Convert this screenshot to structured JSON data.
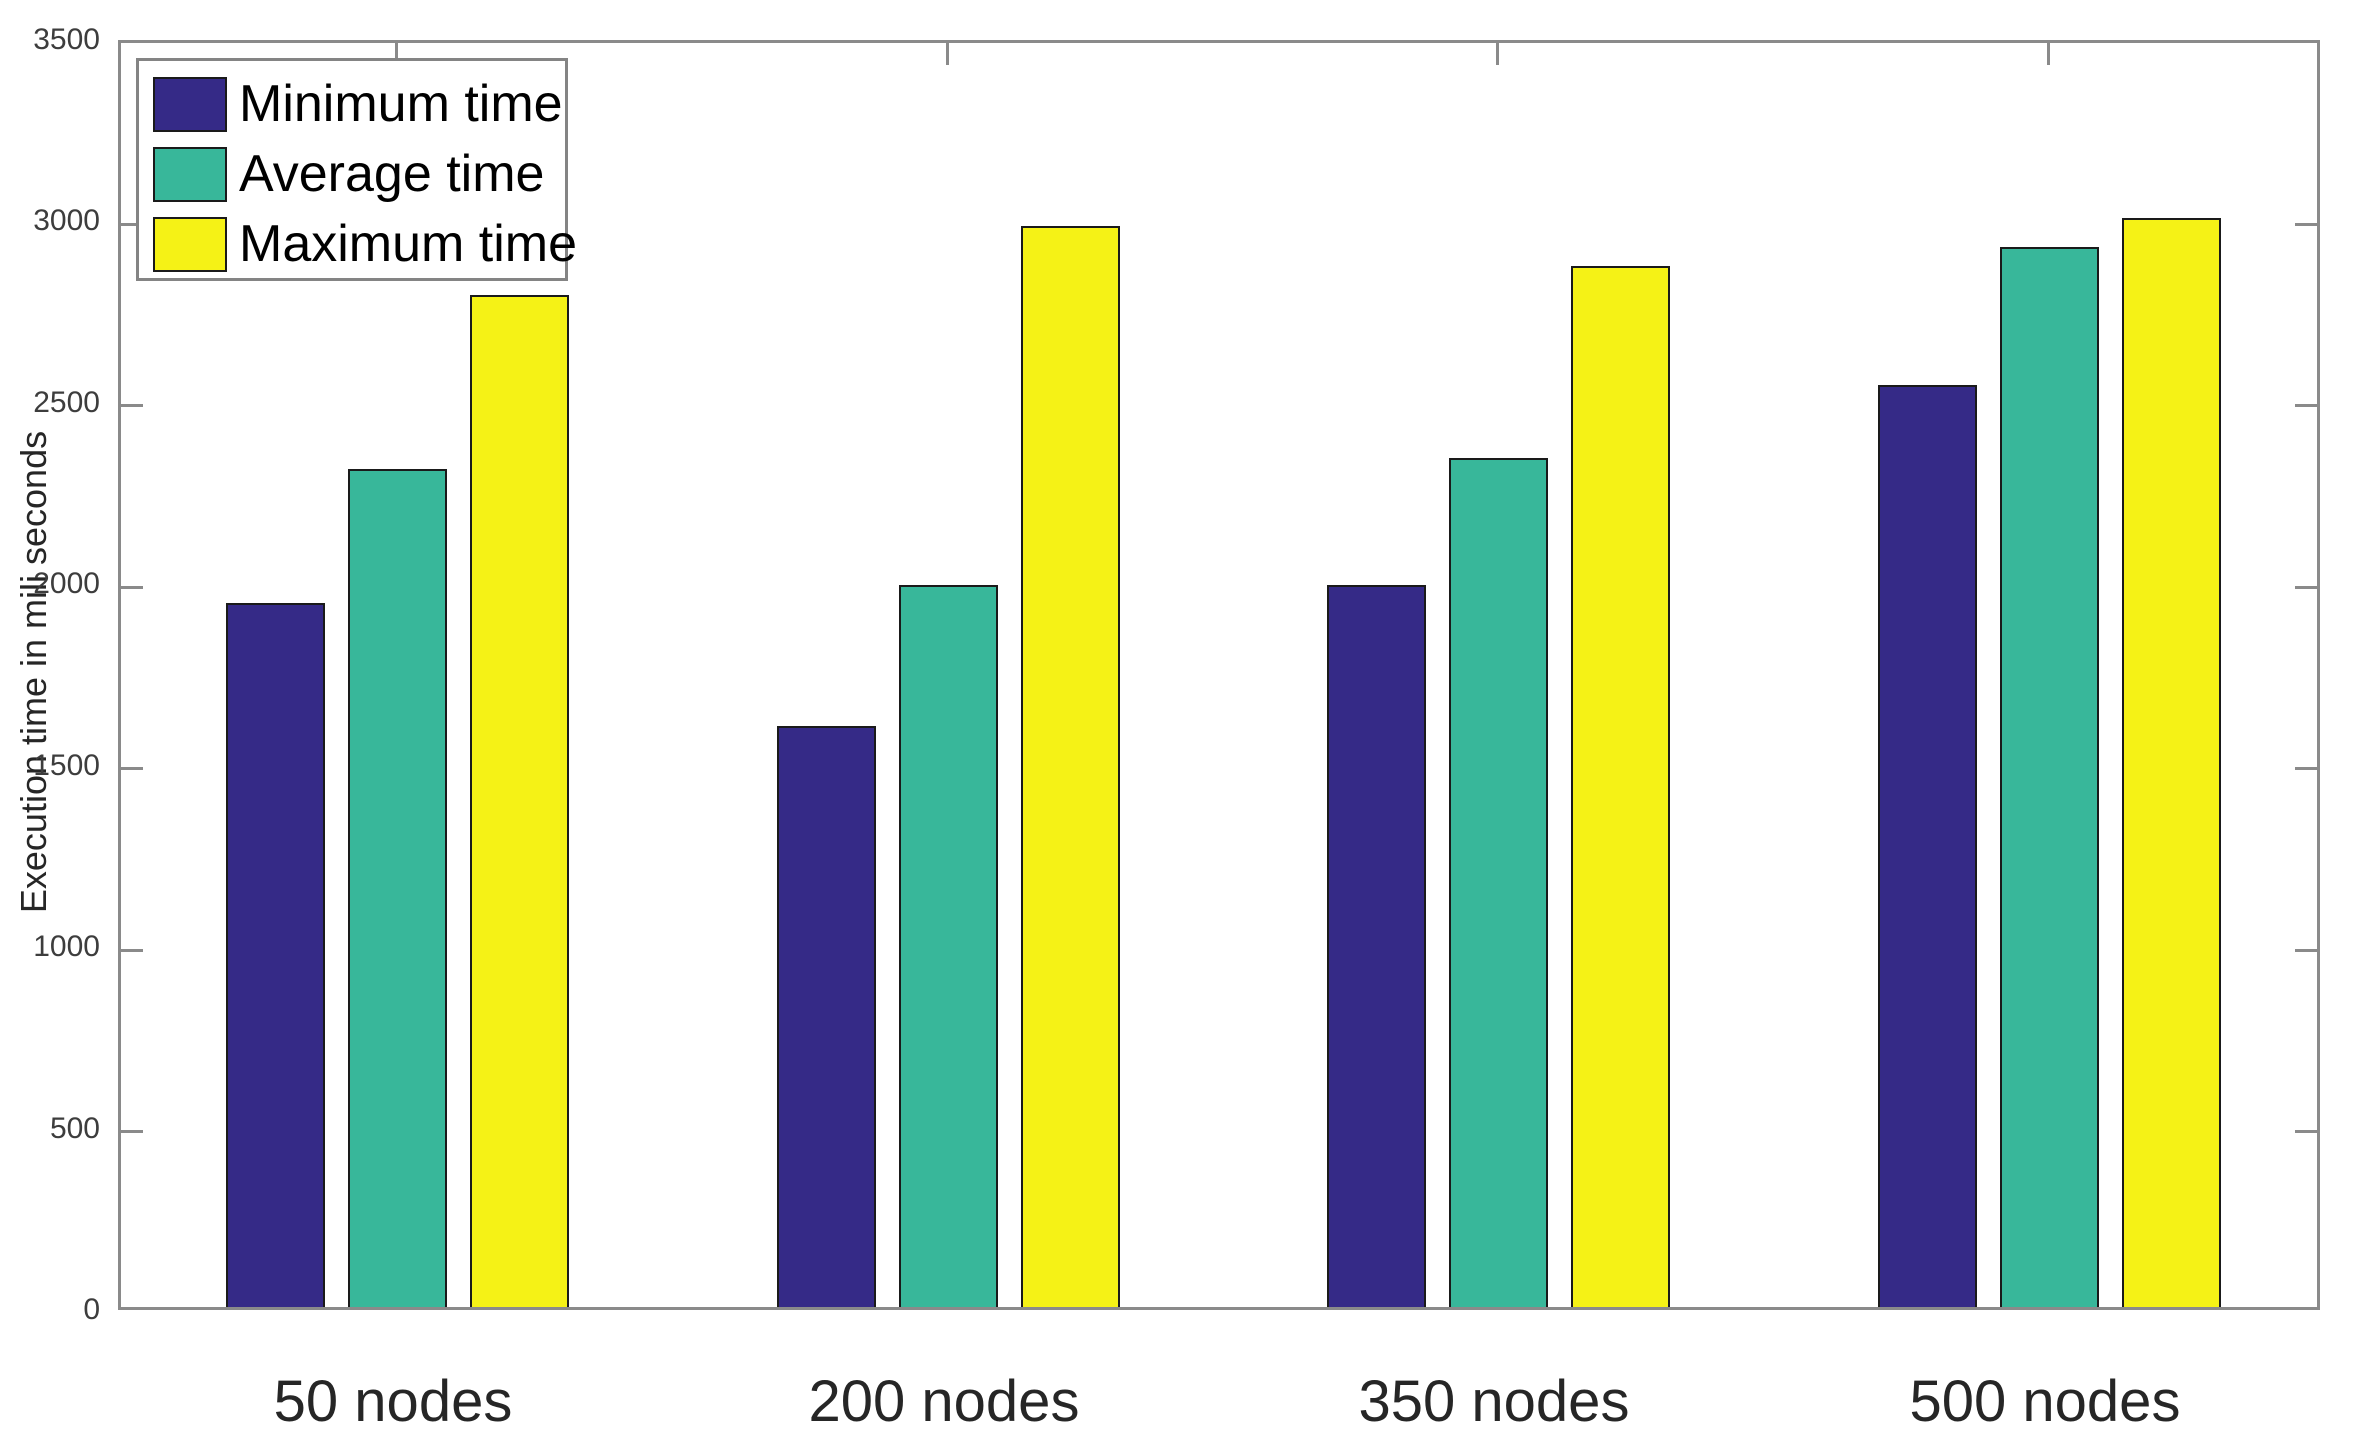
{
  "chart_data": {
    "type": "bar",
    "title": "",
    "categories": [
      "50 nodes",
      "200 nodes",
      "350 nodes",
      "500 nodes"
    ],
    "series": [
      {
        "name": "Minimum time",
        "color": "#352A87",
        "values": [
          1940,
          1600,
          1990,
          2540
        ]
      },
      {
        "name": "Average time",
        "color": "#38B79A",
        "values": [
          2310,
          1990,
          2340,
          2920
        ]
      },
      {
        "name": "Maximum time",
        "color": "#F5F216",
        "values": [
          2790,
          2980,
          2870,
          3000
        ]
      }
    ],
    "xlabel": "",
    "ylabel": "Execution time in mili seconds",
    "ylim": [
      0,
      3500
    ],
    "ytick_step": 500,
    "ytick_labels": [
      "0",
      "500",
      "1000",
      "1500",
      "2000",
      "2500",
      "3000",
      "3500"
    ],
    "grid": false,
    "legend_position": "top-left",
    "legend_entries": [
      "Minimum time",
      "Average time",
      "Maximum time"
    ],
    "colors": {
      "axis_border": "#8A8A8A",
      "bar_edge": "#1A1A1A",
      "background": "#FFFFFF",
      "text": "#262626"
    }
  }
}
